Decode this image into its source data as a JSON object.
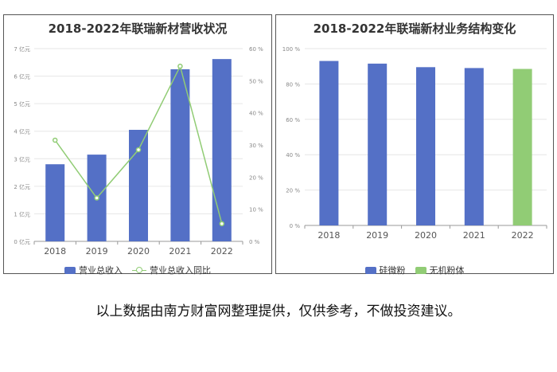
{
  "chart_data": [
    {
      "type": "bar",
      "title": "2018-2022年联瑞新材营收状况",
      "categories": [
        "2018",
        "2019",
        "2020",
        "2021",
        "2022"
      ],
      "series": [
        {
          "name": "营业总收入",
          "type": "bar",
          "axis": "left",
          "color": "#5470c6",
          "values": [
            2.8,
            3.15,
            4.05,
            6.25,
            6.62
          ]
        },
        {
          "name": "营业总收入同比",
          "type": "line",
          "axis": "right",
          "color": "#91cc75",
          "values": [
            31.5,
            13.5,
            28.5,
            54.5,
            5.5
          ]
        }
      ],
      "ylim": [
        0,
        7
      ],
      "y2lim": [
        0,
        60
      ],
      "yticks": [
        "0 亿元",
        "1 亿元",
        "2 亿元",
        "3 亿元",
        "4 亿元",
        "5 亿元",
        "6 亿元",
        "7 亿元"
      ],
      "y2ticks": [
        "0 %",
        "10 %",
        "20 %",
        "30 %",
        "40 %",
        "50 %",
        "60 %"
      ],
      "grid": true,
      "legend_position": "bottom"
    },
    {
      "type": "bar",
      "title": "2018-2022年联瑞新材业务结构变化",
      "categories": [
        "2018",
        "2019",
        "2020",
        "2021",
        "2022"
      ],
      "series": [
        {
          "name": "硅微粉",
          "color": "#5470c6",
          "values": [
            93,
            91.5,
            89.5,
            89,
            null
          ]
        },
        {
          "name": "无机粉体",
          "color": "#91cc75",
          "values": [
            null,
            null,
            null,
            null,
            88.5
          ]
        }
      ],
      "ylim": [
        0,
        100
      ],
      "yticks": [
        "0 %",
        "20 %",
        "40 %",
        "60 %",
        "80 %",
        "100 %"
      ],
      "grid": true,
      "legend_position": "bottom"
    }
  ],
  "footer_text": "以上数据由南方财富网整理提供，仅供参考，不做投资建议。"
}
